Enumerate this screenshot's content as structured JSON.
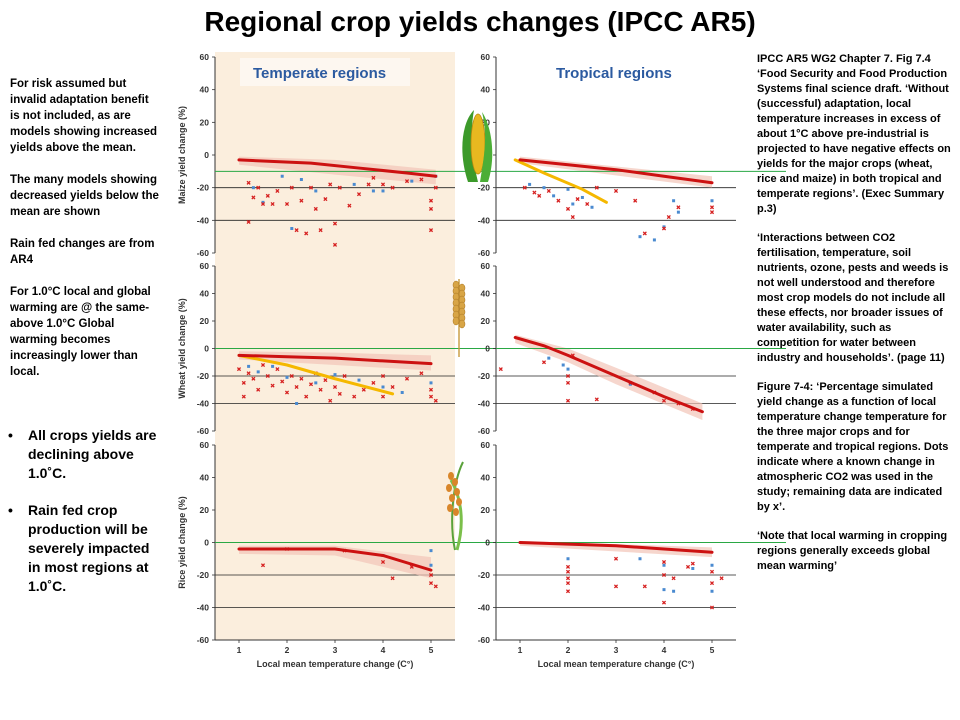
{
  "title": "Regional crop yields changes (IPCC AR5)",
  "left_notes": [
    "For risk assumed but invalid adaptation benefit is not included, as are models showing increased yields above the mean.",
    "The many models showing decreased yields below the mean are shown",
    "Rain fed changes are from AR4",
    "For 1.0°C local and global warming are @ the same-above 1.0°C Global warming becomes increasingly lower than local."
  ],
  "left_bullets": [
    "All crops yields are declining above 1.0˚C.",
    "Rain fed crop production will be severely impacted in most regions at 1.0˚C."
  ],
  "right_notes": [
    "IPCC AR5 WG2 Chapter 7. Fig 7.4 ‘Food Security and Food Production Systems final science draft. ‘Without (successful) adaptation, local temperature increases in excess of about 1°C above pre-industrial is projected to have negative effects on yields for the major crops (wheat, rice and maize) in both tropical and temperate regions’. (Exec Summary p.3)",
    "‘Interactions between CO2 fertilisation, temperature, soil nutrients, ozone, pests and weeds is not well understood and therefore most crop models do not include all these effects, nor broader issues of water availability, such as competition for water between industry and households’. (page 11)",
    "Figure 7-4: ‘Percentage simulated yield change as a function of local temperature change temperature for the three major crops and for temperate and tropical regions. Dots indicate where a known change in atmospheric CO2 was used in the study; remaining data are indicated by x’.",
    "‘Note that local warming in cropping regions generally exceeds global mean warming’"
  ],
  "chart_data": {
    "type": "scatter",
    "columns": [
      "Temperate regions",
      "Tropical regions"
    ],
    "rows": [
      "Maize yield change (%)",
      "Wheat yield change (%)",
      "Rice yield change (%)"
    ],
    "xlabel": "Local mean temperature change (C°)",
    "xlim": [
      0.5,
      5.5
    ],
    "ylim": [
      -60,
      60
    ],
    "xticks": [
      1,
      2,
      3,
      4,
      5
    ],
    "yticks": [
      60,
      40,
      20,
      0,
      -20,
      -40,
      -60
    ],
    "colors": {
      "temperate_bg": "#fbeedd",
      "red_line": "#cc1111",
      "yellow_line": "#f5b800",
      "green_line": "#2aa844",
      "x_marker": "#d62020",
      "dot_marker": "#4a8ad0",
      "band": "#f2c4b8",
      "region_label": "#2b5aa0"
    },
    "panels": [
      {
        "crop": "Maize",
        "region": "Temperate regions",
        "green_line": -10,
        "mean_line": [
          [
            1,
            -3
          ],
          [
            2.5,
            -5
          ],
          [
            3.5,
            -8
          ],
          [
            4.5,
            -11
          ],
          [
            5.1,
            -13
          ]
        ],
        "band": [
          [
            1,
            -1,
            -6
          ],
          [
            3,
            -3,
            -12
          ],
          [
            5.1,
            -9,
            -18
          ]
        ],
        "x_points": [
          [
            1.2,
            -17
          ],
          [
            1.2,
            -41
          ],
          [
            1.3,
            -26
          ],
          [
            1.4,
            -20
          ],
          [
            1.5,
            -30
          ],
          [
            1.6,
            -25
          ],
          [
            1.7,
            -30
          ],
          [
            1.8,
            -22
          ],
          [
            2,
            -30
          ],
          [
            2.1,
            -20
          ],
          [
            2.2,
            -46
          ],
          [
            2.3,
            -28
          ],
          [
            2.4,
            -48
          ],
          [
            2.5,
            -20
          ],
          [
            2.6,
            -33
          ],
          [
            2.7,
            -46
          ],
          [
            2.8,
            -27
          ],
          [
            2.9,
            -18
          ],
          [
            3,
            -42
          ],
          [
            3,
            -55
          ],
          [
            3.1,
            -20
          ],
          [
            3.3,
            -31
          ],
          [
            3.5,
            -24
          ],
          [
            3.7,
            -18
          ],
          [
            3.8,
            -14
          ],
          [
            4,
            -18
          ],
          [
            4.2,
            -20
          ],
          [
            4.5,
            -16
          ],
          [
            4.8,
            -15
          ],
          [
            5,
            -28
          ],
          [
            5,
            -33
          ],
          [
            5,
            -46
          ],
          [
            5.1,
            -20
          ]
        ],
        "dot_points": [
          [
            1.3,
            -20
          ],
          [
            1.5,
            -29
          ],
          [
            1.9,
            -13
          ],
          [
            2.1,
            -45
          ],
          [
            2.3,
            -15
          ],
          [
            2.6,
            -22
          ],
          [
            3.4,
            -18
          ],
          [
            3.8,
            -22
          ],
          [
            4,
            -22
          ],
          [
            4.6,
            -16
          ],
          [
            5.1,
            -13
          ]
        ]
      },
      {
        "crop": "Maize",
        "region": "Tropical regions",
        "green_line": -10,
        "mean_line": [
          [
            1,
            -3
          ],
          [
            2,
            -6
          ],
          [
            3,
            -9
          ],
          [
            4,
            -13
          ],
          [
            5,
            -17
          ]
        ],
        "yellow_line": [
          [
            0.9,
            -3
          ],
          [
            1.5,
            -11
          ],
          [
            2.3,
            -21
          ],
          [
            2.8,
            -29
          ]
        ],
        "band": [
          [
            1,
            -1,
            -5
          ],
          [
            5,
            -13,
            -20
          ]
        ],
        "x_points": [
          [
            1.1,
            -20
          ],
          [
            1.3,
            -23
          ],
          [
            1.4,
            -25
          ],
          [
            1.6,
            -22
          ],
          [
            1.8,
            -28
          ],
          [
            2,
            -33
          ],
          [
            2.1,
            -38
          ],
          [
            2.2,
            -27
          ],
          [
            2.4,
            -30
          ],
          [
            2.6,
            -20
          ],
          [
            3,
            -22
          ],
          [
            3.4,
            -28
          ],
          [
            3.6,
            -48
          ],
          [
            4,
            -45
          ],
          [
            4.1,
            -38
          ],
          [
            4.3,
            -32
          ],
          [
            5,
            -32
          ],
          [
            5,
            -35
          ]
        ],
        "dot_points": [
          [
            1.2,
            -18
          ],
          [
            1.5,
            -20
          ],
          [
            1.7,
            -25
          ],
          [
            2,
            -21
          ],
          [
            2.1,
            -30
          ],
          [
            2.3,
            -26
          ],
          [
            2.5,
            -32
          ],
          [
            3.5,
            -50
          ],
          [
            3.8,
            -52
          ],
          [
            4,
            -44
          ],
          [
            4.2,
            -28
          ],
          [
            4.3,
            -35
          ],
          [
            5,
            -28
          ]
        ]
      },
      {
        "crop": "Wheat",
        "region": "Temperate regions",
        "green_line": 0,
        "mean_line": [
          [
            1,
            -5
          ],
          [
            2,
            -6
          ],
          [
            3,
            -7
          ],
          [
            4,
            -9
          ],
          [
            5,
            -11
          ]
        ],
        "yellow_line": [
          [
            1,
            -5
          ],
          [
            2,
            -12
          ],
          [
            3,
            -22
          ],
          [
            4.2,
            -33
          ]
        ],
        "band": [
          [
            1,
            -2,
            -8
          ],
          [
            3,
            -3,
            -12
          ],
          [
            5,
            -5,
            -16
          ]
        ],
        "x_points": [
          [
            1,
            -15
          ],
          [
            1.1,
            -25
          ],
          [
            1.1,
            -35
          ],
          [
            1.2,
            -18
          ],
          [
            1.3,
            -22
          ],
          [
            1.4,
            -30
          ],
          [
            1.5,
            -12
          ],
          [
            1.6,
            -20
          ],
          [
            1.7,
            -27
          ],
          [
            1.8,
            -15
          ],
          [
            1.9,
            -24
          ],
          [
            2,
            -32
          ],
          [
            2.1,
            -20
          ],
          [
            2.2,
            -28
          ],
          [
            2.3,
            -22
          ],
          [
            2.4,
            -35
          ],
          [
            2.5,
            -26
          ],
          [
            2.6,
            -18
          ],
          [
            2.7,
            -30
          ],
          [
            2.8,
            -23
          ],
          [
            2.9,
            -38
          ],
          [
            3,
            -28
          ],
          [
            3.1,
            -33
          ],
          [
            3.2,
            -20
          ],
          [
            3.4,
            -35
          ],
          [
            3.6,
            -30
          ],
          [
            3.8,
            -25
          ],
          [
            4,
            -20
          ],
          [
            4,
            -35
          ],
          [
            4.2,
            -28
          ],
          [
            4.5,
            -22
          ],
          [
            4.8,
            -18
          ],
          [
            5,
            -30
          ],
          [
            5,
            -35
          ],
          [
            5.1,
            -38
          ]
        ],
        "dot_points": [
          [
            1.2,
            -13
          ],
          [
            1.4,
            -17
          ],
          [
            1.7,
            -13
          ],
          [
            2,
            -21
          ],
          [
            2.2,
            -40
          ],
          [
            2.6,
            -25
          ],
          [
            3,
            -19
          ],
          [
            3.5,
            -23
          ],
          [
            4,
            -28
          ],
          [
            4.4,
            -32
          ],
          [
            5,
            -25
          ]
        ]
      },
      {
        "crop": "Wheat",
        "region": "Tropical regions",
        "green_line": 0,
        "mean_line": [
          [
            0.9,
            8
          ],
          [
            1.5,
            2
          ],
          [
            2,
            -5
          ],
          [
            3,
            -20
          ],
          [
            4,
            -35
          ],
          [
            4.8,
            -46
          ]
        ],
        "band": [
          [
            0.9,
            10,
            4
          ],
          [
            2,
            0,
            -10
          ],
          [
            3,
            -14,
            -26
          ],
          [
            4.8,
            -40,
            -52
          ]
        ],
        "x_points": [
          [
            0.6,
            -15
          ],
          [
            1.5,
            -10
          ],
          [
            2,
            -20
          ],
          [
            2,
            -25
          ],
          [
            2,
            -38
          ],
          [
            2.1,
            -5
          ],
          [
            2.6,
            -37
          ],
          [
            3.3,
            -25
          ],
          [
            3.8,
            -32
          ],
          [
            4,
            -38
          ],
          [
            4.3,
            -40
          ],
          [
            4.6,
            -44
          ]
        ],
        "dot_points": [
          [
            1.6,
            -7
          ],
          [
            1.9,
            -12
          ],
          [
            2,
            -15
          ],
          [
            3.3,
            -26
          ]
        ]
      },
      {
        "crop": "Rice",
        "region": "Temperate regions",
        "green_line": 0,
        "mean_line": [
          [
            1,
            -4
          ],
          [
            2,
            -4
          ],
          [
            3,
            -4
          ],
          [
            4,
            -8
          ],
          [
            5,
            -17
          ]
        ],
        "band": [
          [
            1,
            -2,
            -7
          ],
          [
            3,
            -2,
            -8
          ],
          [
            5,
            -9,
            -22
          ]
        ],
        "x_points": [
          [
            1.5,
            -14
          ],
          [
            2,
            -4
          ],
          [
            3.2,
            -5
          ],
          [
            4,
            -12
          ],
          [
            4.2,
            -22
          ],
          [
            4.6,
            -15
          ],
          [
            5,
            -20
          ],
          [
            5,
            -25
          ],
          [
            5.1,
            -27
          ]
        ],
        "dot_points": [
          [
            1.5,
            -4
          ],
          [
            4,
            -8
          ],
          [
            5,
            -5
          ],
          [
            5,
            -14
          ]
        ]
      },
      {
        "crop": "Rice",
        "region": "Tropical regions",
        "green_line": 0,
        "mean_line": [
          [
            1,
            0
          ],
          [
            2,
            -1
          ],
          [
            3,
            -2
          ],
          [
            4,
            -4
          ],
          [
            5,
            -6
          ]
        ],
        "band": [
          [
            1,
            1,
            -2
          ],
          [
            5,
            -3,
            -9
          ]
        ],
        "x_points": [
          [
            2,
            -15
          ],
          [
            2,
            -18
          ],
          [
            2,
            -22
          ],
          [
            2,
            -25
          ],
          [
            2,
            -30
          ],
          [
            3,
            -27
          ],
          [
            3,
            -10
          ],
          [
            3.6,
            -27
          ],
          [
            4,
            -12
          ],
          [
            4,
            -20
          ],
          [
            4,
            -37
          ],
          [
            4.2,
            -22
          ],
          [
            4.5,
            -15
          ],
          [
            4.6,
            -13
          ],
          [
            5,
            -18
          ],
          [
            5,
            -25
          ],
          [
            5,
            -40
          ],
          [
            5.2,
            -22
          ]
        ],
        "dot_points": [
          [
            2,
            -10
          ],
          [
            3.5,
            -10
          ],
          [
            4,
            -14
          ],
          [
            4,
            -29
          ],
          [
            4.2,
            -30
          ],
          [
            4.6,
            -16
          ],
          [
            5,
            -14
          ],
          [
            5,
            -30
          ]
        ]
      }
    ]
  }
}
